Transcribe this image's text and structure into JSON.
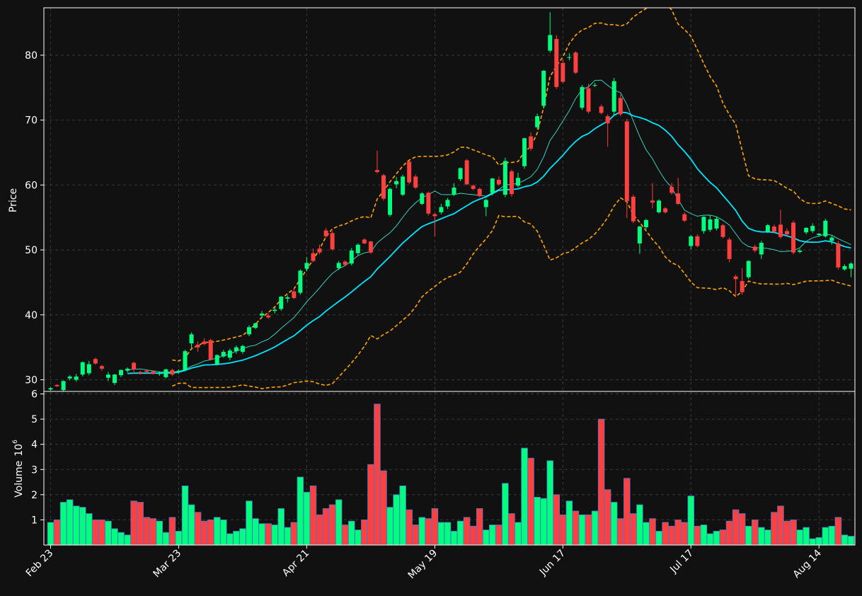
{
  "theme": {
    "background": "#111111",
    "up_color": "#00ff7f",
    "down_color": "#ff4040",
    "volume_edge_color": "#4a78c8",
    "bollinger_color": "#ffa500",
    "sma_long_color": "#00e5ff",
    "sma_short_color": "#40e0d0",
    "grid_color": "#3a3a3a",
    "axis_color": "#ffffff"
  },
  "chart_data": {
    "type": "candlestick",
    "price_panel": {
      "ylabel": "Price",
      "yticks": [
        30,
        40,
        50,
        60,
        70,
        80
      ],
      "ylim": [
        28.2,
        87.3
      ],
      "grid": true
    },
    "volume_panel": {
      "ylabel": "Volume",
      "ylabel_exponent": "6",
      "yticks": [
        1,
        2,
        3,
        4,
        5,
        6
      ],
      "ylim": [
        0,
        6.1
      ],
      "grid": true
    },
    "x_tick_labels": [
      "Feb 23",
      "Mar 23",
      "Apr 21",
      "May 19",
      "Jun 17",
      "Jul 17",
      "Aug 14"
    ],
    "x_tick_indices": [
      0,
      20,
      40,
      60,
      80,
      100,
      120
    ],
    "bollinger_start_index": 19,
    "candles": [
      [
        28.5,
        28.9,
        28.3,
        28.7,
        0.9
      ],
      [
        29.2,
        29.3,
        28.9,
        29.0,
        1.0
      ],
      [
        28.4,
        29.9,
        28.0,
        29.8,
        1.7
      ],
      [
        30.2,
        30.7,
        29.9,
        30.5,
        1.8
      ],
      [
        30.0,
        30.9,
        29.7,
        30.5,
        1.55
      ],
      [
        30.8,
        32.8,
        30.5,
        32.7,
        1.5
      ],
      [
        31.0,
        32.9,
        30.7,
        32.4,
        1.25
      ],
      [
        33.2,
        33.4,
        32.3,
        32.5,
        1.0
      ],
      [
        32.1,
        32.3,
        31.4,
        31.7,
        1.0
      ],
      [
        30.3,
        31.2,
        29.8,
        30.8,
        0.95
      ],
      [
        29.5,
        30.9,
        29.2,
        30.8,
        0.65
      ],
      [
        30.7,
        31.6,
        30.4,
        31.5,
        0.5
      ],
      [
        31.4,
        31.9,
        31.1,
        31.7,
        0.4
      ],
      [
        32.6,
        32.8,
        30.9,
        31.6,
        1.75
      ],
      [
        31.2,
        31.4,
        30.8,
        31.0,
        1.7
      ],
      [
        31.4,
        31.6,
        31.0,
        31.2,
        1.1
      ],
      [
        31.3,
        31.4,
        30.8,
        30.9,
        1.05
      ],
      [
        31.0,
        31.3,
        30.6,
        31.0,
        0.95
      ],
      [
        30.4,
        31.7,
        30.2,
        31.6,
        0.5
      ],
      [
        31.5,
        31.7,
        30.6,
        30.8,
        1.1
      ],
      [
        31.2,
        31.6,
        30.9,
        31.4,
        0.55
      ],
      [
        31.5,
        34.6,
        31.3,
        34.4,
        2.35
      ],
      [
        35.6,
        37.3,
        34.9,
        37.0,
        1.6
      ],
      [
        35.4,
        35.9,
        34.3,
        35.0,
        1.3
      ],
      [
        35.9,
        36.4,
        35.3,
        35.5,
        0.95
      ],
      [
        36.1,
        36.3,
        33.0,
        33.1,
        1.0
      ],
      [
        32.4,
        33.9,
        32.2,
        33.8,
        1.1
      ],
      [
        33.6,
        34.6,
        33.4,
        34.3,
        1.0
      ],
      [
        33.4,
        34.8,
        33.0,
        34.5,
        0.45
      ],
      [
        34.4,
        35.3,
        34.0,
        35.0,
        0.55
      ],
      [
        34.3,
        35.4,
        34.0,
        35.2,
        0.65
      ],
      [
        37.0,
        38.4,
        36.7,
        38.1,
        1.75
      ],
      [
        38.0,
        38.8,
        37.8,
        38.7,
        1.05
      ],
      [
        39.9,
        40.6,
        39.5,
        40.2,
        0.85
      ],
      [
        39.9,
        40.3,
        39.4,
        39.6,
        0.85
      ],
      [
        40.6,
        41.2,
        40.2,
        40.8,
        0.8
      ],
      [
        40.9,
        42.9,
        40.6,
        42.8,
        1.45
      ],
      [
        42.5,
        43.0,
        41.9,
        42.7,
        0.7
      ],
      [
        43.6,
        44.1,
        42.4,
        42.6,
        0.9
      ],
      [
        43.4,
        47.0,
        43.1,
        46.8,
        2.7
      ],
      [
        47.1,
        48.9,
        46.7,
        48.0,
        2.1
      ],
      [
        49.5,
        50.2,
        48.1,
        48.3,
        2.35
      ],
      [
        50.2,
        50.8,
        49.3,
        49.6,
        1.2
      ],
      [
        53.0,
        53.4,
        51.9,
        52.1,
        1.45
      ],
      [
        52.6,
        52.9,
        49.9,
        50.1,
        1.6
      ],
      [
        47.2,
        48.3,
        46.9,
        48.0,
        1.8
      ],
      [
        48.2,
        48.4,
        47.6,
        47.7,
        0.8
      ],
      [
        47.9,
        50.3,
        47.6,
        49.9,
        0.95
      ],
      [
        49.5,
        51.0,
        49.2,
        50.8,
        0.6
      ],
      [
        51.6,
        51.8,
        50.9,
        51.0,
        1.0
      ],
      [
        51.3,
        51.4,
        49.4,
        49.6,
        3.2
      ],
      [
        62.3,
        65.3,
        61.8,
        62.0,
        5.6
      ],
      [
        61.5,
        61.7,
        57.6,
        57.9,
        2.95
      ],
      [
        55.4,
        59.6,
        55.1,
        59.4,
        1.5
      ],
      [
        60.1,
        61.2,
        59.5,
        60.6,
        2.0
      ],
      [
        58.5,
        61.6,
        58.3,
        61.3,
        2.35
      ],
      [
        63.6,
        63.8,
        60.1,
        60.4,
        1.4
      ],
      [
        61.3,
        61.6,
        59.4,
        59.6,
        0.8
      ],
      [
        57.1,
        58.9,
        56.9,
        58.7,
        1.1
      ],
      [
        58.8,
        59.0,
        55.3,
        55.6,
        1.05
      ],
      [
        55.5,
        55.7,
        52.1,
        55.2,
        1.45
      ],
      [
        55.8,
        57.1,
        55.5,
        56.6,
        0.9
      ],
      [
        56.7,
        58.0,
        56.3,
        57.7,
        0.9
      ],
      [
        58.5,
        60.3,
        58.3,
        59.6,
        0.55
      ],
      [
        60.9,
        62.7,
        60.6,
        62.6,
        0.95
      ],
      [
        63.8,
        64.0,
        60.0,
        60.1,
        1.1
      ],
      [
        59.9,
        60.1,
        59.2,
        59.4,
        0.75
      ],
      [
        59.4,
        59.6,
        58.1,
        58.3,
        1.45
      ],
      [
        56.6,
        57.9,
        55.2,
        57.7,
        0.6
      ],
      [
        58.8,
        61.1,
        58.4,
        61.0,
        0.8
      ],
      [
        60.8,
        61.3,
        59.9,
        60.1,
        0.8
      ],
      [
        58.5,
        64.2,
        58.1,
        63.7,
        2.45
      ],
      [
        62.1,
        62.4,
        58.2,
        58.6,
        1.25
      ],
      [
        59.9,
        61.9,
        59.6,
        61.1,
        0.9
      ],
      [
        62.9,
        67.3,
        62.5,
        67.2,
        3.85
      ],
      [
        67.5,
        68.1,
        65.3,
        65.6,
        3.45
      ],
      [
        68.9,
        71.0,
        68.6,
        70.6,
        1.9
      ],
      [
        72.2,
        77.7,
        71.8,
        77.6,
        1.85
      ],
      [
        80.7,
        86.6,
        80.4,
        83.1,
        3.35
      ],
      [
        82.5,
        83.1,
        74.8,
        75.1,
        2.0
      ],
      [
        78.8,
        79.4,
        75.7,
        75.9,
        1.2
      ],
      [
        79.6,
        80.3,
        79.2,
        79.7,
        1.75
      ],
      [
        80.4,
        80.6,
        77.1,
        77.3,
        1.35
      ],
      [
        71.9,
        75.4,
        71.6,
        75.1,
        1.2
      ],
      [
        74.9,
        75.6,
        71.0,
        71.3,
        1.2
      ],
      [
        75.3,
        75.7,
        75.1,
        75.4,
        1.35
      ],
      [
        72.1,
        72.4,
        70.9,
        71.1,
        5.0
      ],
      [
        70.6,
        70.9,
        65.9,
        69.5,
        2.2
      ],
      [
        71.3,
        76.5,
        70.8,
        76.0,
        1.7
      ],
      [
        73.4,
        73.9,
        70.6,
        70.9,
        1.05
      ],
      [
        69.8,
        70.2,
        54.9,
        57.5,
        2.65
      ],
      [
        58.2,
        58.5,
        54.1,
        54.4,
        1.25
      ],
      [
        51.0,
        53.7,
        49.4,
        53.6,
        1.6
      ],
      [
        53.5,
        54.8,
        53.2,
        54.6,
        0.9
      ],
      [
        57.6,
        60.3,
        56.4,
        57.3,
        1.05
      ],
      [
        55.8,
        57.8,
        55.6,
        57.6,
        0.55
      ],
      [
        56.4,
        56.6,
        55.6,
        55.8,
        0.9
      ],
      [
        59.7,
        60.3,
        58.5,
        58.8,
        0.75
      ],
      [
        58.7,
        61.1,
        56.9,
        57.1,
        1.0
      ],
      [
        55.5,
        55.8,
        54.3,
        54.5,
        0.9
      ],
      [
        50.6,
        52.3,
        50.1,
        52.1,
        1.95
      ],
      [
        52.1,
        52.4,
        50.4,
        50.6,
        0.75
      ],
      [
        52.9,
        55.2,
        52.5,
        55.1,
        0.8
      ],
      [
        53.1,
        55.4,
        52.8,
        54.7,
        0.45
      ],
      [
        53.3,
        55.1,
        53.0,
        54.8,
        0.55
      ],
      [
        53.8,
        54.0,
        51.8,
        52.0,
        0.6
      ],
      [
        51.6,
        51.9,
        48.1,
        48.6,
        0.95
      ],
      [
        45.9,
        46.2,
        43.0,
        45.5,
        1.4
      ],
      [
        45.2,
        47.2,
        43.1,
        43.5,
        1.25
      ],
      [
        45.8,
        48.4,
        45.5,
        48.3,
        0.75
      ],
      [
        50.5,
        50.8,
        49.6,
        49.9,
        1.0
      ],
      [
        49.3,
        51.4,
        48.6,
        51.1,
        0.7
      ],
      [
        52.8,
        54.0,
        52.6,
        53.8,
        0.6
      ],
      [
        53.6,
        53.9,
        52.6,
        52.8,
        1.3
      ],
      [
        53.9,
        56.2,
        51.7,
        52.0,
        1.55
      ],
      [
        52.9,
        53.3,
        52.2,
        52.4,
        0.95
      ],
      [
        54.2,
        54.5,
        49.3,
        49.6,
        1.0
      ],
      [
        49.7,
        50.2,
        49.5,
        49.9,
        0.6
      ],
      [
        52.7,
        53.5,
        52.4,
        53.4,
        0.7
      ],
      [
        52.9,
        54.1,
        52.6,
        53.7,
        0.25
      ],
      [
        52.3,
        52.6,
        52.1,
        52.5,
        0.3
      ],
      [
        52.1,
        54.8,
        51.9,
        54.5,
        0.7
      ],
      [
        51.4,
        52.2,
        50.8,
        51.9,
        0.75
      ],
      [
        51.0,
        51.4,
        47.0,
        47.3,
        1.1
      ],
      [
        47.0,
        47.8,
        46.8,
        47.5,
        0.4
      ],
      [
        47.1,
        48.1,
        45.8,
        47.9,
        0.35
      ]
    ]
  }
}
